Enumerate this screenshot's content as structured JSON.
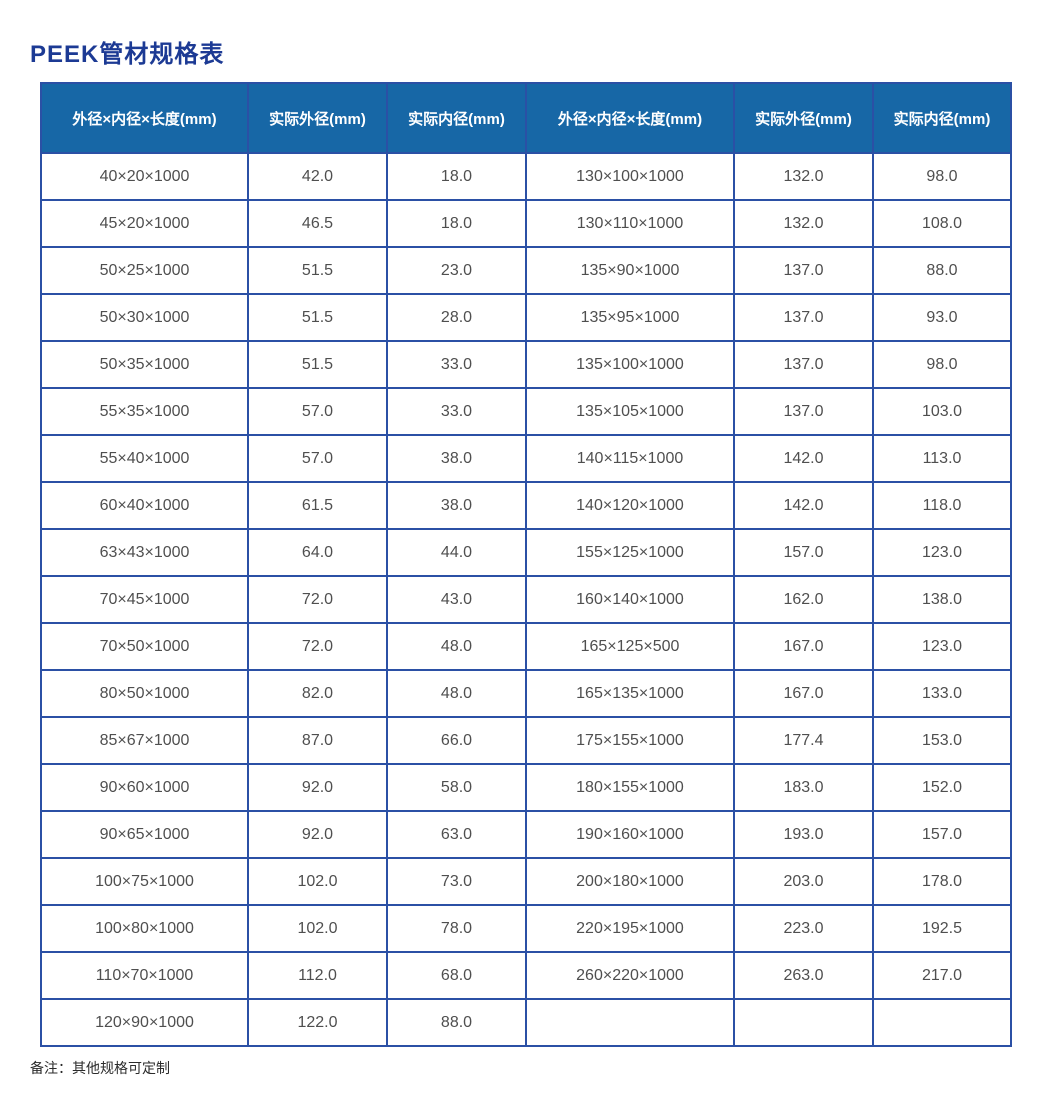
{
  "page": {
    "title": "PEEK管材规格表",
    "note": "备注：其他规格可定制"
  },
  "colors": {
    "title_blue": "#1c3a94",
    "header_bg": "#1767a6",
    "border_blue": "#2b50a5",
    "body_text": "#4f4f4f"
  },
  "table": {
    "headers": [
      "外径×内径×长度(mm)",
      "实际外径(mm)",
      "实际内径(mm)",
      "外径×内径×长度(mm)",
      "实际外径(mm)",
      "实际内径(mm)"
    ],
    "rows": [
      [
        "40×20×1000",
        "42.0",
        "18.0",
        "130×100×1000",
        "132.0",
        "98.0"
      ],
      [
        "45×20×1000",
        "46.5",
        "18.0",
        "130×110×1000",
        "132.0",
        "108.0"
      ],
      [
        "50×25×1000",
        "51.5",
        "23.0",
        "135×90×1000",
        "137.0",
        "88.0"
      ],
      [
        "50×30×1000",
        "51.5",
        "28.0",
        "135×95×1000",
        "137.0",
        "93.0"
      ],
      [
        "50×35×1000",
        "51.5",
        "33.0",
        "135×100×1000",
        "137.0",
        "98.0"
      ],
      [
        "55×35×1000",
        "57.0",
        "33.0",
        "135×105×1000",
        "137.0",
        "103.0"
      ],
      [
        "55×40×1000",
        "57.0",
        "38.0",
        "140×115×1000",
        "142.0",
        "113.0"
      ],
      [
        "60×40×1000",
        "61.5",
        "38.0",
        "140×120×1000",
        "142.0",
        "118.0"
      ],
      [
        "63×43×1000",
        "64.0",
        "44.0",
        "155×125×1000",
        "157.0",
        "123.0"
      ],
      [
        "70×45×1000",
        "72.0",
        "43.0",
        "160×140×1000",
        "162.0",
        "138.0"
      ],
      [
        "70×50×1000",
        "72.0",
        "48.0",
        "165×125×500",
        "167.0",
        "123.0"
      ],
      [
        "80×50×1000",
        "82.0",
        "48.0",
        "165×135×1000",
        "167.0",
        "133.0"
      ],
      [
        "85×67×1000",
        "87.0",
        "66.0",
        "175×155×1000",
        "177.4",
        "153.0"
      ],
      [
        "90×60×1000",
        "92.0",
        "58.0",
        "180×155×1000",
        "183.0",
        "152.0"
      ],
      [
        "90×65×1000",
        "92.0",
        "63.0",
        "190×160×1000",
        "193.0",
        "157.0"
      ],
      [
        "100×75×1000",
        "102.0",
        "73.0",
        "200×180×1000",
        "203.0",
        "178.0"
      ],
      [
        "100×80×1000",
        "102.0",
        "78.0",
        "220×195×1000",
        "223.0",
        "192.5"
      ],
      [
        "110×70×1000",
        "112.0",
        "68.0",
        "260×220×1000",
        "263.0",
        "217.0"
      ],
      [
        "120×90×1000",
        "122.0",
        "88.0",
        "",
        "",
        ""
      ]
    ]
  }
}
